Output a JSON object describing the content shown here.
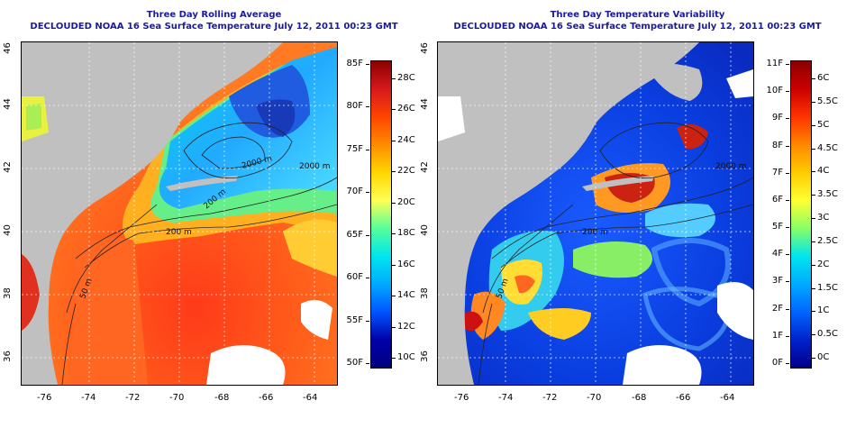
{
  "panels": [
    {
      "title": "Three Day Rolling Average",
      "subtitle": "DECLOUDED NOAA 16 Sea Surface Temperature July 12, 2011 00:23 GMT",
      "contour_labels": [
        "200 m",
        "2000 m",
        "50 m",
        "200 m",
        "2000 m"
      ],
      "colorbar": {
        "left_labels": [
          "85F",
          "80F",
          "75F",
          "70F",
          "65F",
          "60F",
          "55F",
          "50F"
        ],
        "right_labels": [
          "28C",
          "26C",
          "24C",
          "22C",
          "20C",
          "18C",
          "16C",
          "14C",
          "12C",
          "10C"
        ],
        "gradient": [
          "#8b0000",
          "#d7191c",
          "#ff4500",
          "#ff8c00",
          "#ffd700",
          "#ffff55",
          "#55ff99",
          "#00e5ee",
          "#00aaff",
          "#0055ff",
          "#0000aa",
          "#000080"
        ]
      }
    },
    {
      "title": "Three Day Temperature Variability",
      "subtitle": "DECLOUDED NOAA 16 Sea Surface Temperature July 12, 2011 00:23 GMT",
      "contour_labels": [
        "200 m",
        "2000 m",
        "50 m"
      ],
      "colorbar": {
        "left_labels": [
          "11F",
          "10F",
          "9F",
          "8F",
          "7F",
          "6F",
          "5F",
          "4F",
          "3F",
          "2F",
          "1F",
          "0F"
        ],
        "right_labels": [
          "6C",
          "5.5C",
          "5C",
          "4.5C",
          "4C",
          "3.5C",
          "3C",
          "2.5C",
          "2C",
          "1.5C",
          "1C",
          "0.5C",
          "0C"
        ],
        "gradient": [
          "#8b0000",
          "#cc0000",
          "#ff3300",
          "#ff8800",
          "#ffcc00",
          "#ffff33",
          "#88ff66",
          "#00e5ee",
          "#00aaff",
          "#0066ff",
          "#0022cc",
          "#00008b"
        ]
      }
    }
  ],
  "longitude_ticks": [
    "-76",
    "-74",
    "-72",
    "-70",
    "-68",
    "-66",
    "-64"
  ],
  "latitude_ticks": [
    "46",
    "44",
    "42",
    "40",
    "38",
    "36"
  ],
  "colors": {
    "land": "#c0c0c0",
    "title": "#1a1a9a",
    "cloud": "#ffffff"
  }
}
